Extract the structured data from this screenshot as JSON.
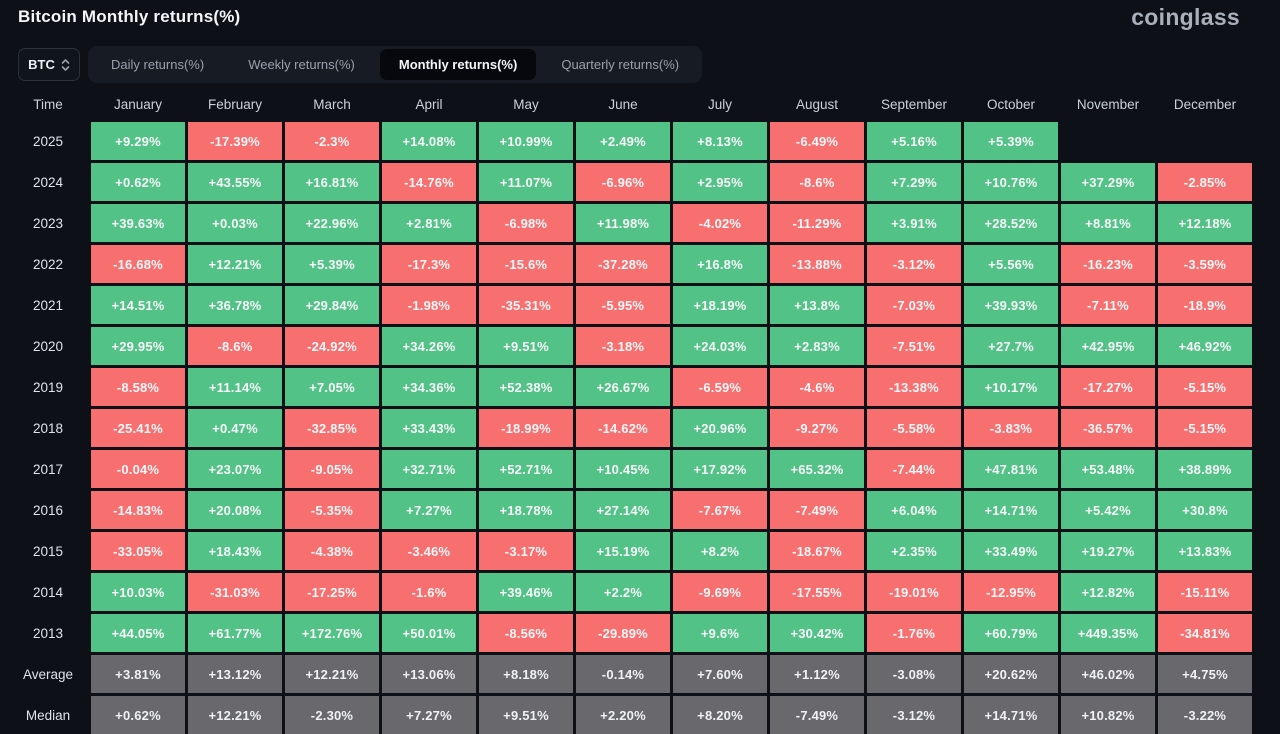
{
  "header": {
    "title": "Bitcoin Monthly returns(%)",
    "logo_text": "coinglass"
  },
  "toolbar": {
    "symbol_select": {
      "value": "BTC"
    },
    "tabs": [
      {
        "id": "daily",
        "label": "Daily returns(%)",
        "active": false
      },
      {
        "id": "weekly",
        "label": "Weekly returns(%)",
        "active": false
      },
      {
        "id": "monthly",
        "label": "Monthly returns(%)",
        "active": true
      },
      {
        "id": "quarterly",
        "label": "Quarterly returns(%)",
        "active": false
      }
    ]
  },
  "colors": {
    "positive": "#53c286",
    "negative": "#f76f6f",
    "summary": "#69696d"
  },
  "chart_data": {
    "type": "heatmap",
    "title": "Bitcoin Monthly returns(%)",
    "columns": [
      "Time",
      "January",
      "February",
      "March",
      "April",
      "May",
      "June",
      "July",
      "August",
      "September",
      "October",
      "November",
      "December"
    ],
    "rows": [
      {
        "label": "2025",
        "kind": "year",
        "values": [
          "+9.29%",
          "-17.39%",
          "-2.3%",
          "+14.08%",
          "+10.99%",
          "+2.49%",
          "+8.13%",
          "-6.49%",
          "+5.16%",
          "+5.39%",
          "",
          ""
        ]
      },
      {
        "label": "2024",
        "kind": "year",
        "values": [
          "+0.62%",
          "+43.55%",
          "+16.81%",
          "-14.76%",
          "+11.07%",
          "-6.96%",
          "+2.95%",
          "-8.6%",
          "+7.29%",
          "+10.76%",
          "+37.29%",
          "-2.85%"
        ]
      },
      {
        "label": "2023",
        "kind": "year",
        "values": [
          "+39.63%",
          "+0.03%",
          "+22.96%",
          "+2.81%",
          "-6.98%",
          "+11.98%",
          "-4.02%",
          "-11.29%",
          "+3.91%",
          "+28.52%",
          "+8.81%",
          "+12.18%"
        ]
      },
      {
        "label": "2022",
        "kind": "year",
        "values": [
          "-16.68%",
          "+12.21%",
          "+5.39%",
          "-17.3%",
          "-15.6%",
          "-37.28%",
          "+16.8%",
          "-13.88%",
          "-3.12%",
          "+5.56%",
          "-16.23%",
          "-3.59%"
        ]
      },
      {
        "label": "2021",
        "kind": "year",
        "values": [
          "+14.51%",
          "+36.78%",
          "+29.84%",
          "-1.98%",
          "-35.31%",
          "-5.95%",
          "+18.19%",
          "+13.8%",
          "-7.03%",
          "+39.93%",
          "-7.11%",
          "-18.9%"
        ]
      },
      {
        "label": "2020",
        "kind": "year",
        "values": [
          "+29.95%",
          "-8.6%",
          "-24.92%",
          "+34.26%",
          "+9.51%",
          "-3.18%",
          "+24.03%",
          "+2.83%",
          "-7.51%",
          "+27.7%",
          "+42.95%",
          "+46.92%"
        ]
      },
      {
        "label": "2019",
        "kind": "year",
        "values": [
          "-8.58%",
          "+11.14%",
          "+7.05%",
          "+34.36%",
          "+52.38%",
          "+26.67%",
          "-6.59%",
          "-4.6%",
          "-13.38%",
          "+10.17%",
          "-17.27%",
          "-5.15%"
        ]
      },
      {
        "label": "2018",
        "kind": "year",
        "values": [
          "-25.41%",
          "+0.47%",
          "-32.85%",
          "+33.43%",
          "-18.99%",
          "-14.62%",
          "+20.96%",
          "-9.27%",
          "-5.58%",
          "-3.83%",
          "-36.57%",
          "-5.15%"
        ]
      },
      {
        "label": "2017",
        "kind": "year",
        "values": [
          "-0.04%",
          "+23.07%",
          "-9.05%",
          "+32.71%",
          "+52.71%",
          "+10.45%",
          "+17.92%",
          "+65.32%",
          "-7.44%",
          "+47.81%",
          "+53.48%",
          "+38.89%"
        ]
      },
      {
        "label": "2016",
        "kind": "year",
        "values": [
          "-14.83%",
          "+20.08%",
          "-5.35%",
          "+7.27%",
          "+18.78%",
          "+27.14%",
          "-7.67%",
          "-7.49%",
          "+6.04%",
          "+14.71%",
          "+5.42%",
          "+30.8%"
        ]
      },
      {
        "label": "2015",
        "kind": "year",
        "values": [
          "-33.05%",
          "+18.43%",
          "-4.38%",
          "-3.46%",
          "-3.17%",
          "+15.19%",
          "+8.2%",
          "-18.67%",
          "+2.35%",
          "+33.49%",
          "+19.27%",
          "+13.83%"
        ]
      },
      {
        "label": "2014",
        "kind": "year",
        "values": [
          "+10.03%",
          "-31.03%",
          "-17.25%",
          "-1.6%",
          "+39.46%",
          "+2.2%",
          "-9.69%",
          "-17.55%",
          "-19.01%",
          "-12.95%",
          "+12.82%",
          "-15.11%"
        ]
      },
      {
        "label": "2013",
        "kind": "year",
        "values": [
          "+44.05%",
          "+61.77%",
          "+172.76%",
          "+50.01%",
          "-8.56%",
          "-29.89%",
          "+9.6%",
          "+30.42%",
          "-1.76%",
          "+60.79%",
          "+449.35%",
          "-34.81%"
        ]
      },
      {
        "label": "Average",
        "kind": "summary",
        "values": [
          "+3.81%",
          "+13.12%",
          "+12.21%",
          "+13.06%",
          "+8.18%",
          "-0.14%",
          "+7.60%",
          "+1.12%",
          "-3.08%",
          "+20.62%",
          "+46.02%",
          "+4.75%"
        ]
      },
      {
        "label": "Median",
        "kind": "summary",
        "values": [
          "+0.62%",
          "+12.21%",
          "-2.30%",
          "+7.27%",
          "+9.51%",
          "+2.20%",
          "+8.20%",
          "-7.49%",
          "-3.12%",
          "+14.71%",
          "+10.82%",
          "-3.22%"
        ]
      }
    ]
  }
}
